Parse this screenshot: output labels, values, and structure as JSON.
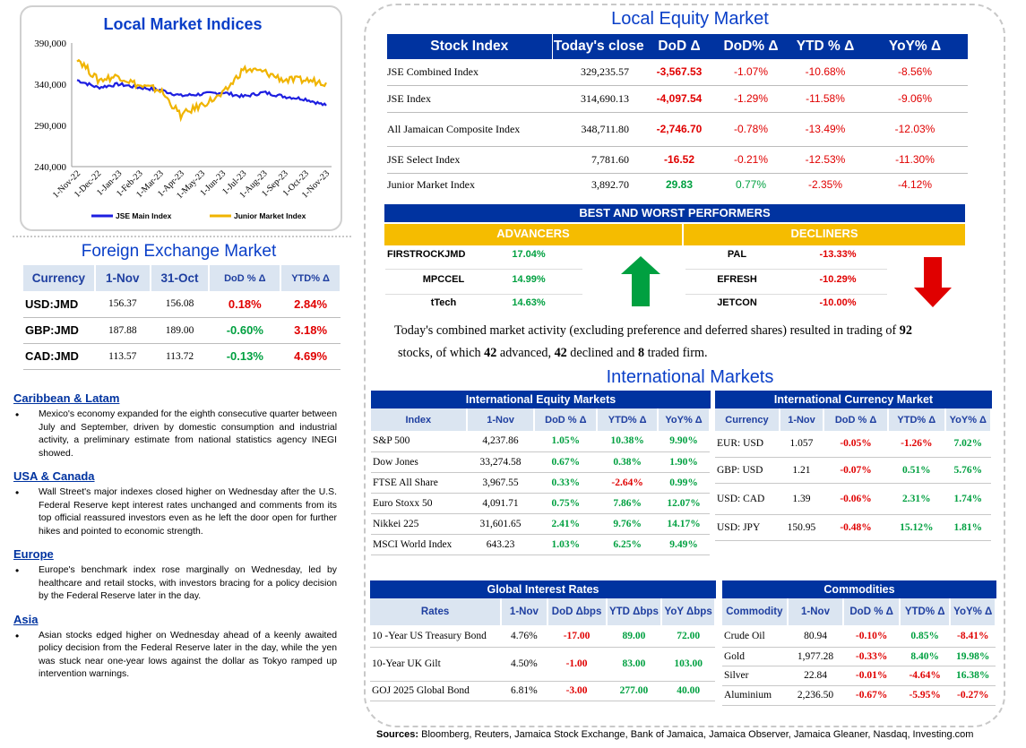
{
  "local_indices": {
    "title": "Local Market Indices",
    "chart_data": {
      "type": "line",
      "yticks": [
        "390,000",
        "340,000",
        "290,000",
        "240,000"
      ],
      "ylim": [
        240000,
        390000
      ],
      "x": [
        "1-Nov-22",
        "1-Dec-22",
        "1-Jan-23",
        "1-Feb-23",
        "1-Mar-23",
        "1-Apr-23",
        "1-May-23",
        "1-Jun-23",
        "1-Jul-23",
        "1-Aug-23",
        "1-Sep-23",
        "1-Oct-23",
        "1-Nov-23"
      ],
      "series": [
        {
          "name": "JSE Main Index",
          "color": "#1d1ee0",
          "values": [
            345000,
            336000,
            340000,
            336000,
            333000,
            326000,
            328000,
            330000,
            325000,
            330000,
            325000,
            322000,
            314000
          ]
        },
        {
          "name": "Junior Market Index",
          "color": "#f0b400",
          "values": [
            372000,
            345000,
            350000,
            338000,
            333000,
            302000,
            315000,
            327000,
            358000,
            355000,
            345000,
            345000,
            342000
          ]
        }
      ]
    }
  },
  "fx": {
    "title": "Foreign Exchange Market",
    "headers": [
      "Currency",
      "1-Nov",
      "31-Oct",
      "DoD % Δ",
      "YTD% Δ"
    ],
    "rows": [
      {
        "cur": "USD:JMD",
        "a": "156.37",
        "b": "156.08",
        "dod": "0.18%",
        "ytd": "2.84%",
        "dod_c": "red",
        "ytd_c": "red"
      },
      {
        "cur": "GBP:JMD",
        "a": "187.88",
        "b": "189.00",
        "dod": "-0.60%",
        "ytd": "3.18%",
        "dod_c": "green",
        "ytd_c": "red"
      },
      {
        "cur": "CAD:JMD",
        "a": "113.57",
        "b": "113.72",
        "dod": "-0.13%",
        "ytd": "4.69%",
        "dod_c": "green",
        "ytd_c": "red"
      }
    ]
  },
  "news": [
    {
      "title": "Caribbean & Latam",
      "text": "Mexico's economy expanded for the eighth consecutive quarter between July and September, driven by domestic consumption and industrial activity, a preliminary estimate from national statistics agency INEGI showed."
    },
    {
      "title": "USA & Canada",
      "text": "Wall Street's major indexes closed higher on Wednesday after the U.S. Federal Reserve kept interest rates unchanged and comments from its top official reassured investors even as he left the door open for further hikes and pointed to economic strength."
    },
    {
      "title": "Europe",
      "text": "Europe's benchmark index rose marginally on Wednesday, led by healthcare and retail stocks, with investors bracing for a policy decision by the Federal Reserve later in the day."
    },
    {
      "title": "Asia",
      "text": "Asian stocks edged higher on Wednesday ahead of a keenly awaited policy decision from the Federal Reserve later in the day, while the yen was stuck near one-year lows against the dollar as Tokyo ramped up intervention warnings."
    }
  ],
  "equity": {
    "title": "Local Equity Market",
    "headers": [
      "Stock Index",
      "Today's close",
      "DoD  Δ",
      "DoD% Δ",
      "YTD % Δ",
      "YoY% Δ"
    ],
    "rows": [
      {
        "name": "JSE Combined Index",
        "close": "329,235.57",
        "dod": "-3,567.53",
        "dodp": "-1.07%",
        "ytd": "-10.68%",
        "yoy": "-8.56%",
        "c": "red"
      },
      {
        "name": "JSE Index",
        "close": "314,690.13",
        "dod": "-4,097.54",
        "dodp": "-1.29%",
        "ytd": "-11.58%",
        "yoy": "-9.06%",
        "c": "red"
      },
      {
        "name": "All Jamaican Composite Index",
        "close": "348,711.80",
        "dod": "-2,746.70",
        "dodp": "-0.78%",
        "ytd": "-13.49%",
        "yoy": "-12.03%",
        "c": "red"
      },
      {
        "name": "JSE Select Index",
        "close": "7,781.60",
        "dod": "-16.52",
        "dodp": "-0.21%",
        "ytd": "-12.53%",
        "yoy": "-11.30%",
        "c": "red"
      },
      {
        "name": "Junior Market Index",
        "close": "3,892.70",
        "dod": "29.83",
        "dodp": "0.77%",
        "ytd": "-2.35%",
        "yoy": "-4.12%",
        "c": "mixed"
      }
    ]
  },
  "performers": {
    "title": "BEST AND WORST PERFORMERS",
    "adv_label": "ADVANCERS",
    "dec_label": "DECLINERS",
    "advancers": [
      {
        "name": "FIRSTROCKJMD",
        "val": "17.04%"
      },
      {
        "name": "MPCCEL",
        "val": "14.99%"
      },
      {
        "name": "tTech",
        "val": "14.63%"
      }
    ],
    "decliners": [
      {
        "name": "PAL",
        "val": "-13.33%"
      },
      {
        "name": "EFRESH",
        "val": "-10.29%"
      },
      {
        "name": "JETCON",
        "val": "-10.00%"
      }
    ]
  },
  "summary": {
    "p1": "Today's combined market activity (excluding preference and deferred shares) resulted in trading of ",
    "n1": "92",
    "p2": "stocks, of which ",
    "n2": "42",
    "p3": " advanced, ",
    "n3": "42",
    "p4": " declined and ",
    "n4": "8",
    "p5": " traded firm."
  },
  "intl": {
    "title": "International Markets",
    "eq_title": "International Equity Markets",
    "eq_headers": [
      "Index",
      "1-Nov",
      "DoD % Δ",
      "YTD% Δ",
      "YoY% Δ"
    ],
    "eq_rows": [
      {
        "name": "S&P 500",
        "v": "4,237.86",
        "d": "1.05%",
        "y": "10.38%",
        "yy": "9.90%",
        "dc": "green",
        "yc": "green",
        "yyc": "green"
      },
      {
        "name": "Dow Jones",
        "v": "33,274.58",
        "d": "0.67%",
        "y": "0.38%",
        "yy": "1.90%",
        "dc": "green",
        "yc": "green",
        "yyc": "green"
      },
      {
        "name": "FTSE All Share",
        "v": "3,967.55",
        "d": "0.33%",
        "y": "-2.64%",
        "yy": "0.99%",
        "dc": "green",
        "yc": "red",
        "yyc": "green"
      },
      {
        "name": "Euro Stoxx 50",
        "v": "4,091.71",
        "d": "0.75%",
        "y": "7.86%",
        "yy": "12.07%",
        "dc": "green",
        "yc": "green",
        "yyc": "green"
      },
      {
        "name": "Nikkei 225",
        "v": "31,601.65",
        "d": "2.41%",
        "y": "9.76%",
        "yy": "14.17%",
        "dc": "green",
        "yc": "green",
        "yyc": "green"
      },
      {
        "name": "MSCI World Index",
        "v": "643.23",
        "d": "1.03%",
        "y": "6.25%",
        "yy": "9.49%",
        "dc": "green",
        "yc": "green",
        "yyc": "green"
      }
    ],
    "cur_title": "International Currency Market",
    "cur_headers": [
      "Currency",
      "1-Nov",
      "DoD % Δ",
      "YTD% Δ",
      "YoY% Δ"
    ],
    "cur_rows": [
      {
        "name": "EUR: USD",
        "v": "1.057",
        "d": "-0.05%",
        "y": "-1.26%",
        "yy": "7.02%",
        "dc": "red",
        "yc": "red",
        "yyc": "green"
      },
      {
        "name": "GBP: USD",
        "v": "1.21",
        "d": "-0.07%",
        "y": "0.51%",
        "yy": "5.76%",
        "dc": "red",
        "yc": "green",
        "yyc": "green"
      },
      {
        "name": "USD: CAD",
        "v": "1.39",
        "d": "-0.06%",
        "y": "2.31%",
        "yy": "1.74%",
        "dc": "red",
        "yc": "green",
        "yyc": "green"
      },
      {
        "name": "USD: JPY",
        "v": "150.95",
        "d": "-0.48%",
        "y": "15.12%",
        "yy": "1.81%",
        "dc": "red",
        "yc": "green",
        "yyc": "green"
      }
    ]
  },
  "rates": {
    "title": "Global Interest Rates",
    "headers": [
      "Rates",
      "1-Nov",
      "DoD Δbps",
      "YTD Δbps",
      "YoY Δbps"
    ],
    "rows": [
      {
        "name": "10 -Year US Treasury Bond",
        "v": "4.76%",
        "d": "-17.00",
        "y": "89.00",
        "yy": "72.00",
        "dc": "red",
        "yc": "green",
        "yyc": "green"
      },
      {
        "name": "10-Year UK Gilt",
        "v": "4.50%",
        "d": "-1.00",
        "y": "83.00",
        "yy": "103.00",
        "dc": "red",
        "yc": "green",
        "yyc": "green"
      },
      {
        "name": "GOJ 2025 Global Bond",
        "v": "6.81%",
        "d": "-3.00",
        "y": "277.00",
        "yy": "40.00",
        "dc": "red",
        "yc": "green",
        "yyc": "green"
      }
    ]
  },
  "commod": {
    "title": "Commodities",
    "headers": [
      "Commodity",
      "1-Nov",
      "DoD % Δ",
      "YTD% Δ",
      "YoY% Δ"
    ],
    "rows": [
      {
        "name": "Crude Oil",
        "v": "80.94",
        "d": "-0.10%",
        "y": "0.85%",
        "yy": "-8.41%",
        "dc": "red",
        "yc": "green",
        "yyc": "red"
      },
      {
        "name": "Gold",
        "v": "1,977.28",
        "d": "-0.33%",
        "y": "8.40%",
        "yy": "19.98%",
        "dc": "red",
        "yc": "green",
        "yyc": "green"
      },
      {
        "name": "Silver",
        "v": "22.84",
        "d": "-0.01%",
        "y": "-4.64%",
        "yy": "16.38%",
        "dc": "red",
        "yc": "red",
        "yyc": "green"
      },
      {
        "name": "Aluminium",
        "v": "2,236.50",
        "d": "-0.67%",
        "y": "-5.95%",
        "yy": "-0.27%",
        "dc": "red",
        "yc": "red",
        "yyc": "red"
      }
    ]
  },
  "sources": {
    "label": "Sources:",
    "text": " Bloomberg, Reuters, Jamaica Stock Exchange, Bank of Jamaica, Jamaica Observer, Jamaica Gleaner, Nasdaq, Investing.com"
  }
}
